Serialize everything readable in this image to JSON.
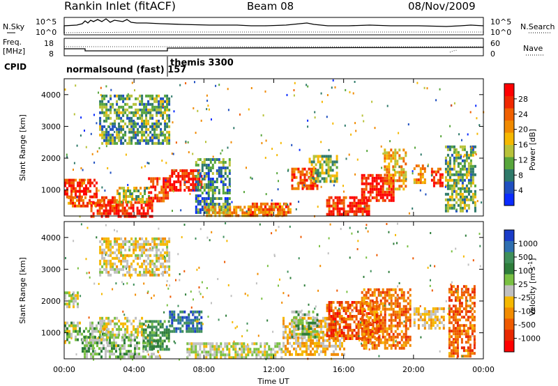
{
  "header": {
    "station": "Rankin Inlet (fitACF)",
    "beam": "Beam 08",
    "date": "08/Nov/2009"
  },
  "summary": {
    "left_top_label": "N.Sky",
    "left_mid_label_1": "Freq.",
    "left_mid_label_2": "[MHz]",
    "left_cpid_label": "CPID",
    "right_top_label": "N.Search",
    "right_mid_label": "Nave",
    "left_top_ticks": [
      "10^5",
      "10^0"
    ],
    "right_top_ticks": [
      "10^5",
      "10^0"
    ],
    "left_mid_ticks": [
      "18",
      "8"
    ],
    "right_mid_ticks": [
      "60",
      "0"
    ],
    "cpid_1": "normalsound (fast) 157",
    "cpid_2": "themis 3300"
  },
  "x_axis": {
    "label": "Time UT",
    "ticks": [
      "00:00",
      "04:00",
      "08:00",
      "12:00",
      "16:00",
      "20:00",
      "00:00"
    ]
  },
  "colorbars": {
    "power": {
      "label": "Power [dB]",
      "ticks": [
        "4",
        "8",
        "12",
        "16",
        "20",
        "24",
        "28"
      ],
      "colors": [
        "#0a2bff",
        "#1f4fc0",
        "#2f7a6a",
        "#58a63c",
        "#b8c23a",
        "#f5b800",
        "#f08a00",
        "#f06000",
        "#f02800",
        "#ff0000"
      ]
    },
    "velocity": {
      "label": "Velocity [m s^-1]",
      "ticks": [
        "1000",
        "500",
        "100",
        "25",
        "-25",
        "-100",
        "-500",
        "-1000"
      ],
      "colors": [
        "#1a3cc8",
        "#2f6fb0",
        "#3f8f5a",
        "#2e7d3a",
        "#7ac043",
        "#c0c0c0",
        "#f5b800",
        "#f28c00",
        "#ee5a00",
        "#e82800",
        "#ff0000"
      ]
    }
  },
  "chart_data": [
    {
      "type": "heatmap",
      "name": "power",
      "xlabel": "Time UT",
      "ylabel": "Slant Range [km]",
      "xlim_hours": [
        0,
        24
      ],
      "ylim_km": [
        180,
        4500
      ],
      "yticks": [
        1000,
        2000,
        3000,
        4000
      ],
      "clabel": "Power [dB]",
      "crange": [
        0,
        30
      ],
      "regions": [
        {
          "t0": 0.0,
          "t1": 1.8,
          "r0": 800,
          "r1": 1350,
          "v": 26
        },
        {
          "t0": 0.2,
          "t1": 3.0,
          "r0": 450,
          "r1": 800,
          "v": 22
        },
        {
          "t0": 1.5,
          "t1": 5.0,
          "r0": 200,
          "r1": 650,
          "v": 27
        },
        {
          "t0": 3.0,
          "t1": 4.8,
          "r0": 600,
          "r1": 1100,
          "v": 14
        },
        {
          "t0": 4.8,
          "t1": 5.9,
          "r0": 650,
          "r1": 1400,
          "v": 25
        },
        {
          "t0": 6.0,
          "t1": 7.8,
          "r0": 1000,
          "r1": 1650,
          "v": 27
        },
        {
          "t0": 7.5,
          "t1": 9.5,
          "r0": 300,
          "r1": 2000,
          "v": 8
        },
        {
          "t0": 8.0,
          "t1": 12.5,
          "r0": 200,
          "r1": 500,
          "v": 18
        },
        {
          "t0": 13.0,
          "t1": 14.5,
          "r0": 1000,
          "r1": 1700,
          "v": 24
        },
        {
          "t0": 14.0,
          "t1": 15.6,
          "r0": 1300,
          "r1": 2100,
          "v": 12
        },
        {
          "t0": 15.0,
          "t1": 17.5,
          "r0": 250,
          "r1": 800,
          "v": 26
        },
        {
          "t0": 17.0,
          "t1": 18.8,
          "r0": 700,
          "r1": 1500,
          "v": 27
        },
        {
          "t0": 18.3,
          "t1": 19.5,
          "r0": 1000,
          "r1": 2300,
          "v": 18
        },
        {
          "t0": 20.0,
          "t1": 20.6,
          "r0": 1200,
          "r1": 1800,
          "v": 20
        },
        {
          "t0": 21.0,
          "t1": 21.6,
          "r0": 1100,
          "r1": 1700,
          "v": 25
        },
        {
          "t0": 21.8,
          "t1": 23.5,
          "r0": 300,
          "r1": 2400,
          "v": 11
        },
        {
          "t0": 2.0,
          "t1": 6.0,
          "r0": 2500,
          "r1": 4000,
          "v": 10
        },
        {
          "t0": 10.5,
          "t1": 13.0,
          "r0": 200,
          "r1": 600,
          "v": 23
        }
      ]
    },
    {
      "type": "heatmap",
      "name": "velocity",
      "xlabel": "Time UT",
      "ylabel": "Slant Range [km]",
      "xlim_hours": [
        0,
        24
      ],
      "ylim_km": [
        180,
        4500
      ],
      "yticks": [
        1000,
        2000,
        3000,
        4000
      ],
      "clabel": "Velocity [m s^-1]",
      "crange": [
        -1000,
        1000
      ],
      "regions": [
        {
          "t0": 0.0,
          "t1": 2.5,
          "r0": 700,
          "r1": 1350,
          "v": 90
        },
        {
          "t0": 1.0,
          "t1": 5.5,
          "r0": 200,
          "r1": 900,
          "v": 150
        },
        {
          "t0": 2.0,
          "t1": 4.5,
          "r0": 900,
          "r1": 1500,
          "v": -30
        },
        {
          "t0": 4.5,
          "t1": 6.0,
          "r0": 500,
          "r1": 1400,
          "v": 400
        },
        {
          "t0": 6.0,
          "t1": 7.8,
          "r0": 1000,
          "r1": 1700,
          "v": 700
        },
        {
          "t0": 7.0,
          "t1": 12.5,
          "r0": 200,
          "r1": 700,
          "v": 10
        },
        {
          "t0": 12.5,
          "t1": 16.0,
          "r0": 300,
          "r1": 1500,
          "v": -200
        },
        {
          "t0": 13.0,
          "t1": 14.5,
          "r0": 900,
          "r1": 1700,
          "v": 150
        },
        {
          "t0": 15.0,
          "t1": 18.0,
          "r0": 800,
          "r1": 2000,
          "v": -600
        },
        {
          "t0": 17.0,
          "t1": 19.8,
          "r0": 500,
          "r1": 2400,
          "v": -450
        },
        {
          "t0": 20.0,
          "t1": 21.7,
          "r0": 1100,
          "r1": 1800,
          "v": -150
        },
        {
          "t0": 22.0,
          "t1": 23.5,
          "r0": 300,
          "r1": 2500,
          "v": -500
        },
        {
          "t0": 0.0,
          "t1": 0.8,
          "r0": 1800,
          "r1": 2300,
          "v": 10
        },
        {
          "t0": 2.0,
          "t1": 6.0,
          "r0": 2800,
          "r1": 4000,
          "v": -80
        }
      ]
    }
  ]
}
